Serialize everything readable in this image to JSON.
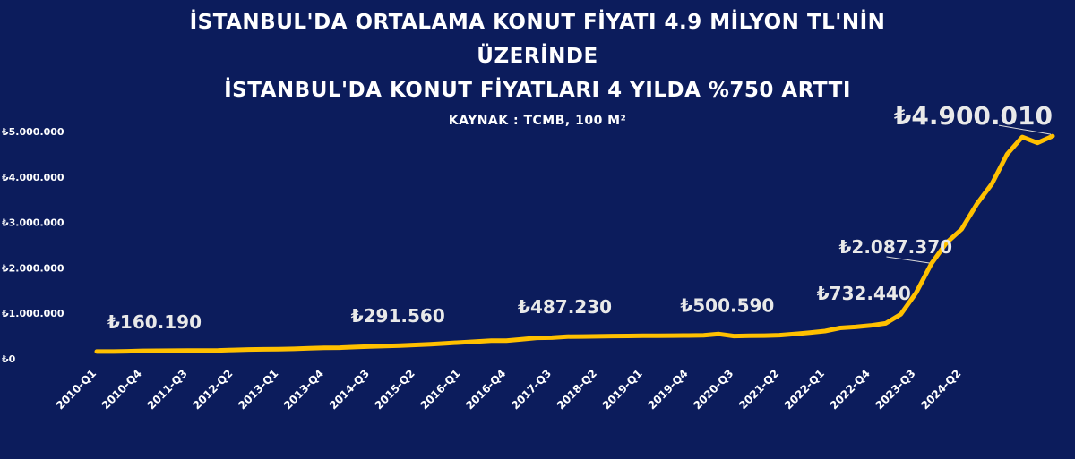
{
  "chart_data": {
    "type": "line",
    "title_lines": [
      "İSTANBUL'DA ORTALAMA KONUT FİYATI 4.9 MİLYON TL'NİN",
      "ÜZERİNDE",
      "İSTANBUL'DA KONUT FİYATLARI 4 YILDA %750 ARTTI"
    ],
    "subtitle": "KAYNAK : TCMB, 100 M²",
    "xlabel": "",
    "ylabel": "",
    "ylim": [
      0,
      5000000
    ],
    "grid": false,
    "legend": "none",
    "line_color": "#ffc000",
    "y_ticks": [
      {
        "value": 0,
        "label": "₺0"
      },
      {
        "value": 1000000,
        "label": "₺1.000.000"
      },
      {
        "value": 2000000,
        "label": "₺2.000.000"
      },
      {
        "value": 3000000,
        "label": "₺3.000.000"
      },
      {
        "value": 4000000,
        "label": "₺4.000.000"
      },
      {
        "value": 5000000,
        "label": "₺5.000.000"
      }
    ],
    "x_ticks": [
      "2010-Q1",
      "2010-Q4",
      "2011-Q3",
      "2012-Q2",
      "2013-Q1",
      "2013-Q4",
      "2014-Q3",
      "2015-Q2",
      "2016-Q1",
      "2016-Q4",
      "2017-Q3",
      "2018-Q2",
      "2019-Q1",
      "2019-Q4",
      "2020-Q3",
      "2021-Q2",
      "2022-Q1",
      "2022-Q4",
      "2023-Q3",
      "2024-Q2"
    ],
    "series": [
      {
        "values": [
          160190,
          160000,
          165000,
          175000,
          178000,
          180000,
          182000,
          183000,
          186000,
          195000,
          205000,
          208000,
          210000,
          218000,
          230000,
          240000,
          245000,
          258000,
          270000,
          280000,
          291560,
          305000,
          320000,
          340000,
          360000,
          380000,
          400000,
          400000,
          430000,
          460000,
          465000,
          487230,
          490000,
          495000,
          500000,
          502000,
          505000,
          507000,
          510000,
          512000,
          515000,
          545000,
          500590,
          505000,
          510000,
          520000,
          545000,
          575000,
          610000,
          680000,
          700000,
          732440,
          780000,
          980000,
          1450000,
          2087370,
          2550000,
          2850000,
          3400000,
          3850000,
          4500000,
          4880000,
          4750000,
          4900010
        ],
        "labels": [
          {
            "index": 0,
            "text": "₺160.190"
          },
          {
            "index": 20,
            "text": "₺291.560"
          },
          {
            "index": 31,
            "text": "₺487.230"
          },
          {
            "index": 42,
            "text": "₺500.590"
          },
          {
            "index": 51,
            "text": "₺732.440"
          },
          {
            "index": 55,
            "text": "₺2.087.370"
          },
          {
            "index": 63,
            "text": "₺4.900.010"
          }
        ]
      }
    ]
  }
}
